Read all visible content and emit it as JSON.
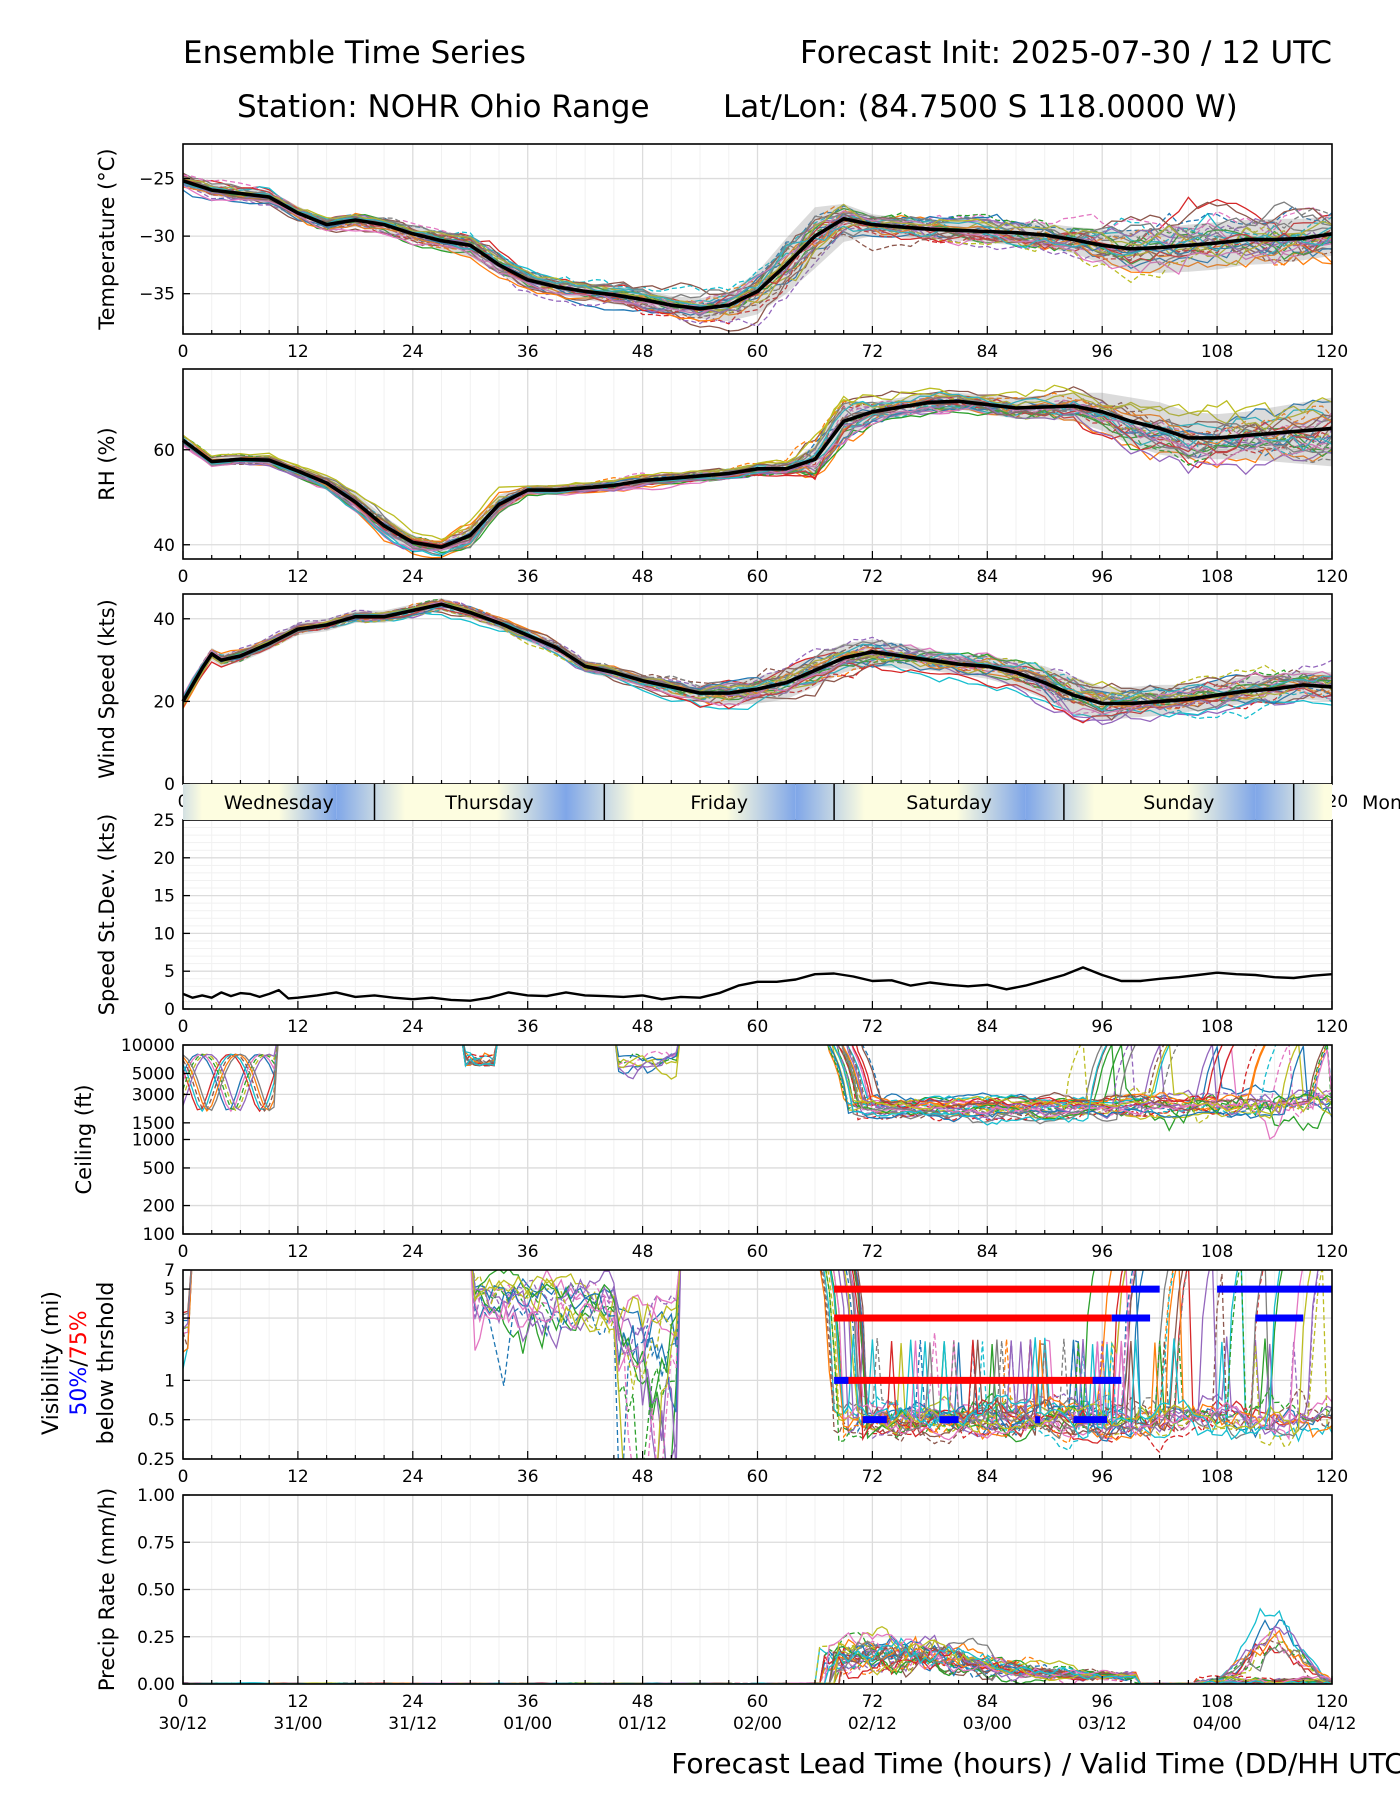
{
  "header": {
    "title_left": "Ensemble Time Series",
    "title_right": "Forecast Init: 2025-07-30 / 12 UTC",
    "station": "Station: NOHR Ohio Range",
    "latlon": "Lat/Lon: (84.7500 S 118.0000 W)"
  },
  "x_axis": {
    "label": "Forecast Lead Time (hours) / Valid Time (DD/HH UTC)",
    "range": [
      0,
      120
    ],
    "ticks": [
      "0",
      "12",
      "24",
      "36",
      "48",
      "60",
      "72",
      "84",
      "96",
      "108",
      "120"
    ],
    "valid_time_labels": [
      "30/12",
      "31/00",
      "31/12",
      "01/00",
      "01/12",
      "02/00",
      "02/12",
      "03/00",
      "03/12",
      "04/00",
      "04/12"
    ]
  },
  "day_strip": {
    "days": [
      {
        "name": "Wednesday",
        "start": 0,
        "end": 20
      },
      {
        "name": "Thursday",
        "start": 20,
        "end": 44
      },
      {
        "name": "Friday",
        "start": 44,
        "end": 68
      },
      {
        "name": "Saturday",
        "start": 68,
        "end": 92
      },
      {
        "name": "Sunday",
        "start": 92,
        "end": 116
      },
      {
        "name": "Mon",
        "start": 116,
        "end": 140
      }
    ],
    "night_color": "#7fa6e8",
    "day_color": "#fdfde0"
  },
  "legend": {
    "vis_label_1": "Visibility (mi)",
    "vis_pct_50": "50%",
    "vis_sep": "/",
    "vis_pct_75": "75%",
    "vis_label_3": "below thrshold",
    "color_50": "#0000ff",
    "color_75": "#ff0000"
  },
  "chart_data": [
    {
      "id": "temperature",
      "type": "line",
      "ylabel": "Temperature (°C)",
      "ylim": [
        -38.5,
        -22
      ],
      "yticks": [
        -25,
        -30,
        -35
      ],
      "yticklabels": [
        "−25",
        "−30",
        "−35"
      ],
      "mean": {
        "x": [
          0,
          3,
          6,
          9,
          12,
          15,
          18,
          21,
          24,
          27,
          30,
          33,
          36,
          39,
          42,
          45,
          48,
          51,
          54,
          57,
          60,
          63,
          66,
          69,
          72,
          75,
          78,
          81,
          84,
          87,
          90,
          93,
          96,
          99,
          102,
          105,
          108,
          111,
          114,
          117,
          120
        ],
        "y": [
          -25.2,
          -26,
          -26.3,
          -26.6,
          -28,
          -29,
          -28.6,
          -29,
          -29.8,
          -30.4,
          -30.8,
          -32.5,
          -33.8,
          -34.4,
          -34.8,
          -35.1,
          -35.5,
          -36,
          -36.3,
          -36,
          -34.8,
          -32.5,
          -30,
          -28.5,
          -29,
          -29.2,
          -29.4,
          -29.5,
          -29.6,
          -29.7,
          -29.9,
          -30.3,
          -30.8,
          -31.1,
          -31,
          -30.8,
          -30.6,
          -30.3,
          -30.3,
          -30.2,
          -29.8
        ]
      },
      "spread": {
        "lo": [
          -25.6,
          -26.5,
          -26.8,
          -27.2,
          -28.6,
          -29.5,
          -29.2,
          -29.7,
          -30.5,
          -31.2,
          -31.8,
          -33.3,
          -34.5,
          -35.1,
          -35.5,
          -35.9,
          -36.3,
          -36.8,
          -37.2,
          -37.4,
          -36.8,
          -35,
          -32.8,
          -30.5,
          -30,
          -30.1,
          -30.3,
          -30.4,
          -30.6,
          -30.8,
          -31,
          -31.5,
          -32.4,
          -33,
          -33.2,
          -33.1,
          -32.9,
          -32.5,
          -32.4,
          -32.1,
          -31.7
        ],
        "hi": [
          -24.8,
          -25.5,
          -25.8,
          -26,
          -27.4,
          -28.5,
          -28.1,
          -28.4,
          -29.1,
          -29.6,
          -29.9,
          -31.7,
          -33,
          -33.7,
          -34.1,
          -34.3,
          -34.7,
          -35.2,
          -35.4,
          -34.9,
          -33.1,
          -30.2,
          -27.5,
          -27.2,
          -28.1,
          -28.4,
          -28.6,
          -28.7,
          -28.8,
          -28.8,
          -28.9,
          -29.2,
          -29.4,
          -29.5,
          -29.3,
          -29,
          -28.8,
          -28.6,
          -28.5,
          -28.5,
          -28.2
        ]
      },
      "members": 30,
      "member_sd": [
        0.5,
        0.6,
        0.6,
        0.6,
        0.6,
        0.6,
        0.6,
        0.7,
        0.7,
        0.8,
        0.9,
        0.9,
        0.8,
        0.8,
        0.8,
        0.8,
        0.9,
        0.9,
        1,
        1.2,
        1.6,
        2,
        2,
        1.4,
        1,
        1,
        1,
        1,
        1.1,
        1.1,
        1.2,
        1.4,
        1.7,
        1.9,
        2,
        2.1,
        2.1,
        2.1,
        2.1,
        2,
        2
      ]
    },
    {
      "id": "rh",
      "type": "line",
      "ylabel": "RH (%)",
      "ylim": [
        37,
        77
      ],
      "yticks": [
        40,
        60
      ],
      "yticklabels": [
        "40",
        "60"
      ],
      "mean": {
        "x": [
          0,
          3,
          6,
          9,
          12,
          15,
          18,
          21,
          24,
          27,
          30,
          33,
          36,
          39,
          42,
          45,
          48,
          51,
          54,
          57,
          60,
          63,
          66,
          69,
          72,
          75,
          78,
          81,
          84,
          87,
          90,
          93,
          96,
          99,
          102,
          105,
          108,
          111,
          114,
          117,
          120
        ],
        "y": [
          62,
          57.5,
          58,
          57.8,
          55.5,
          53,
          49,
          44,
          40.5,
          39.5,
          42,
          48.5,
          51.5,
          51.5,
          52,
          52.5,
          53.5,
          54,
          54.5,
          55,
          56,
          56,
          58,
          66,
          68,
          69,
          70,
          70.2,
          69.5,
          68.8,
          69,
          69.2,
          68,
          66,
          64.5,
          62.5,
          62.5,
          63,
          63.5,
          64,
          64.5
        ]
      },
      "spread": {
        "lo": [
          61,
          56.5,
          57,
          56.8,
          54.5,
          51.5,
          47,
          42,
          39,
          38.5,
          40,
          46.5,
          50.5,
          50.5,
          51,
          51.5,
          52.5,
          53,
          53.5,
          54,
          55,
          55,
          55,
          62,
          66,
          67,
          68,
          68.5,
          67.5,
          66.5,
          66.5,
          66,
          64,
          61,
          59,
          58,
          58,
          58,
          57.5,
          57,
          56.5
        ],
        "hi": [
          63,
          58.5,
          59,
          58.8,
          56.5,
          54.5,
          51,
          46,
          42,
          40.5,
          44,
          50.5,
          52.5,
          52.5,
          53,
          53.5,
          54.5,
          55,
          55.5,
          56,
          57,
          57,
          61,
          70,
          70,
          71,
          72,
          72,
          71.5,
          71,
          71.5,
          72,
          72,
          71,
          70,
          68,
          67.5,
          68,
          69,
          70,
          71
        ]
      },
      "members": 30,
      "member_sd": [
        0.6,
        0.7,
        0.7,
        0.8,
        0.9,
        1.1,
        1.5,
        1.8,
        1.5,
        1.3,
        1.8,
        1.6,
        0.9,
        0.9,
        0.9,
        1,
        1,
        1,
        1,
        1.1,
        1.2,
        1.4,
        4,
        5,
        2.2,
        2,
        2,
        2,
        2.1,
        2.2,
        2.4,
        3,
        3.6,
        4,
        4.3,
        4.5,
        4.6,
        4.8,
        5,
        5.2,
        5.4
      ]
    },
    {
      "id": "wind_speed",
      "type": "line",
      "ylabel": "Wind Speed (kts)",
      "ylim": [
        0,
        46
      ],
      "yticks": [
        0,
        20,
        40
      ],
      "yticklabels": [
        "0",
        "20",
        "40"
      ],
      "mean": {
        "x": [
          0,
          2,
          3,
          4,
          6,
          9,
          12,
          15,
          18,
          21,
          24,
          27,
          30,
          33,
          36,
          39,
          42,
          45,
          48,
          51,
          54,
          57,
          60,
          63,
          66,
          69,
          72,
          75,
          78,
          81,
          84,
          87,
          90,
          93,
          96,
          99,
          102,
          105,
          108,
          111,
          114,
          117,
          120
        ],
        "y": [
          20,
          28,
          31.5,
          30,
          31,
          34,
          37.5,
          38.5,
          40.5,
          40.5,
          42,
          43.5,
          41.5,
          39,
          36,
          33,
          28.5,
          27,
          25,
          23.5,
          22,
          22,
          23,
          24.5,
          27.5,
          30.5,
          32,
          31,
          30,
          29,
          28.5,
          27,
          24.5,
          21.5,
          19.5,
          19.5,
          20,
          20.5,
          21.5,
          22.5,
          23,
          24,
          23.5
        ]
      },
      "spread": {
        "lo": [
          18.5,
          26.5,
          30,
          28.5,
          29.5,
          32.5,
          36,
          37,
          39,
          39,
          40.5,
          42,
          40,
          37.5,
          34.5,
          31.5,
          27,
          25.5,
          23.5,
          21.5,
          20,
          19,
          19.5,
          20.5,
          23.5,
          27,
          28.5,
          28,
          27.5,
          26.5,
          25.5,
          23.5,
          20.5,
          17,
          15.5,
          16,
          16.5,
          17.5,
          18.5,
          19.5,
          20,
          20.5,
          20
        ],
        "hi": [
          21.5,
          29.5,
          33,
          31.5,
          32.5,
          35.5,
          39,
          40,
          42,
          42,
          43.5,
          45,
          43,
          40.5,
          37.5,
          34.5,
          30,
          28.5,
          26.5,
          25,
          24,
          24.5,
          26,
          28,
          31,
          34,
          35,
          34,
          32.5,
          31.5,
          31,
          30,
          28.5,
          26,
          23.5,
          23.5,
          24,
          24,
          25,
          26,
          26.5,
          27.5,
          27
        ]
      },
      "members": 30,
      "member_sd": [
        1.2,
        1.3,
        1.3,
        1.3,
        1.3,
        1.3,
        1.2,
        1.2,
        1.3,
        1.4,
        1.4,
        1.4,
        1.4,
        1.4,
        1.4,
        1.4,
        1.3,
        1.3,
        1.5,
        1.8,
        2.3,
        2.7,
        3,
        3.3,
        3.4,
        3.2,
        3,
        2.9,
        2.8,
        2.8,
        2.9,
        3.1,
        3.6,
        4,
        3.7,
        3.3,
        3.2,
        3.2,
        3.3,
        3.4,
        3.5,
        3.6,
        3.6
      ]
    },
    {
      "id": "speed_stdev",
      "type": "line",
      "ylabel": "Speed St.Dev. (kts)",
      "ylim": [
        0,
        25
      ],
      "yticks": [
        0,
        5,
        10,
        15,
        20,
        25
      ],
      "yticklabels": [
        "0",
        "5",
        "10",
        "15",
        "20",
        "25"
      ],
      "series": [
        {
          "x": [
            0,
            1,
            2,
            3,
            4,
            5,
            6,
            7,
            8,
            9,
            10,
            11,
            12,
            14,
            16,
            18,
            20,
            22,
            24,
            26,
            28,
            30,
            32,
            34,
            36,
            38,
            40,
            42,
            44,
            46,
            48,
            50,
            52,
            54,
            56,
            58,
            60,
            62,
            64,
            66,
            68,
            70,
            72,
            74,
            76,
            78,
            80,
            82,
            84,
            86,
            88,
            90,
            92,
            94,
            96,
            98,
            100,
            102,
            104,
            106,
            108,
            110,
            112,
            114,
            116,
            118,
            120
          ],
          "y": [
            2,
            1.5,
            1.8,
            1.5,
            2.2,
            1.7,
            2.1,
            2,
            1.6,
            2,
            2.5,
            1.4,
            1.5,
            1.8,
            2.2,
            1.6,
            1.8,
            1.5,
            1.3,
            1.5,
            1.2,
            1.1,
            1.5,
            2.2,
            1.8,
            1.7,
            2.2,
            1.8,
            1.7,
            1.6,
            1.8,
            1.3,
            1.6,
            1.5,
            2.1,
            3.1,
            3.6,
            3.6,
            3.9,
            4.6,
            4.7,
            4.3,
            3.7,
            3.8,
            3.1,
            3.5,
            3.2,
            3,
            3.2,
            2.6,
            3.1,
            3.8,
            4.5,
            5.5,
            4.5,
            3.7,
            3.7,
            4,
            4.2,
            4.5,
            4.8,
            4.6,
            4.5,
            4.2,
            4.1,
            4.4,
            4.6
          ]
        }
      ]
    },
    {
      "id": "ceiling",
      "type": "line",
      "ylabel": "Ceiling (ft)",
      "scale": "log",
      "ylim": [
        100,
        10000
      ],
      "yticks": [
        100,
        200,
        500,
        1000,
        1500,
        3000,
        5000,
        10000
      ],
      "yticklabels": [
        "100",
        "200",
        "500",
        "1000",
        "1500",
        "3000",
        "5000",
        "10000"
      ],
      "members": 30
    },
    {
      "id": "visibility",
      "type": "line",
      "scale": "log",
      "ylim": [
        0.25,
        7
      ],
      "yticks": [
        0.25,
        0.5,
        1,
        3,
        5,
        7
      ],
      "yticklabels": [
        "0.25",
        "0.5",
        "1",
        "3",
        "5",
        "7"
      ],
      "members": 30,
      "threshold_bars": [
        {
          "threshold": 5,
          "pct": 75,
          "start": 68,
          "end": 99
        },
        {
          "threshold": 5,
          "pct": 50,
          "start": 99,
          "end": 102
        },
        {
          "threshold": 5,
          "pct": 50,
          "start": 108,
          "end": 120
        },
        {
          "threshold": 3,
          "pct": 75,
          "start": 68,
          "end": 97
        },
        {
          "threshold": 3,
          "pct": 50,
          "start": 97,
          "end": 101
        },
        {
          "threshold": 3,
          "pct": 50,
          "start": 112,
          "end": 117
        },
        {
          "threshold": 1,
          "pct": 75,
          "start": 69,
          "end": 97
        },
        {
          "threshold": 1,
          "pct": 50,
          "start": 68,
          "end": 69.5
        },
        {
          "threshold": 1,
          "pct": 50,
          "start": 95,
          "end": 98
        },
        {
          "threshold": 0.5,
          "pct": 50,
          "start": 71,
          "end": 73.5
        },
        {
          "threshold": 0.5,
          "pct": 50,
          "start": 79,
          "end": 81
        },
        {
          "threshold": 0.5,
          "pct": 50,
          "start": 89,
          "end": 89.5
        },
        {
          "threshold": 0.5,
          "pct": 50,
          "start": 93,
          "end": 96.5
        }
      ]
    },
    {
      "id": "precip_rate",
      "type": "line",
      "ylabel": "Precip Rate (mm/h)",
      "ylim": [
        0,
        1
      ],
      "yticks": [
        0,
        0.25,
        0.5,
        0.75,
        1.0
      ],
      "yticklabels": [
        "0.00",
        "0.25",
        "0.50",
        "0.75",
        "1.00"
      ],
      "members": 30
    }
  ]
}
